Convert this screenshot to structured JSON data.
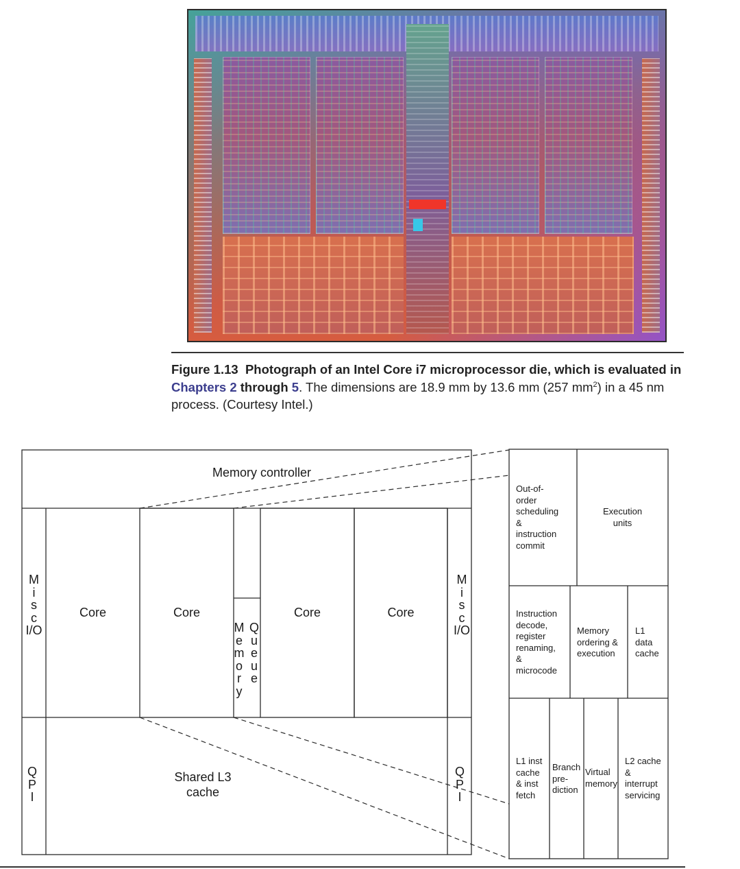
{
  "photo": {
    "icon": "die-photograph",
    "colors": [
      "#6a74a8",
      "#a65a72",
      "#d65c3f",
      "#f0352a",
      "#37c8e8"
    ]
  },
  "caption": {
    "figure": "Figure 1.13",
    "text_1": "Photograph of an Intel Core i7 microprocessor die, which is evaluated in",
    "link_1": "Chapters 2",
    "text_2": "through",
    "link_2": "5",
    "text_3": ". The dimensions are 18.9 mm by 13.6 mm (257 mm",
    "sup": "2",
    "text_4": ") in a 45 nm process. (Courtesy Intel.)"
  },
  "chip": {
    "memory_controller": "Memory controller",
    "misc_io_left": "Misc\nI/O",
    "misc_io_right": "Misc\nI/O",
    "qpi_left": "QPI",
    "qpi_right": "QPI",
    "cores": [
      "Core",
      "Core",
      "Core",
      "Core"
    ],
    "memory": "Memory",
    "queue": "Queue",
    "l3": "Shared L3\ncache"
  },
  "core_detail": {
    "ooo": "Out-of-\norder\nscheduling\n&\ninstruction\ncommit",
    "execution_units": "Execution\nunits",
    "decode": "Instruction\ndecode,\nregister\nrenaming,\n&\nmicrocode",
    "mem_ordering": "Memory\nordering &\nexecution",
    "l1_data": "L1\ndata\ncache",
    "l1_inst": "L1 inst\ncache\n& inst\nfetch",
    "branch": "Branch\npre-\ndiction",
    "virtual_memory": "Virtual\nmemory",
    "l2": "L2 cache\n&\ninterrupt\nservicing"
  }
}
